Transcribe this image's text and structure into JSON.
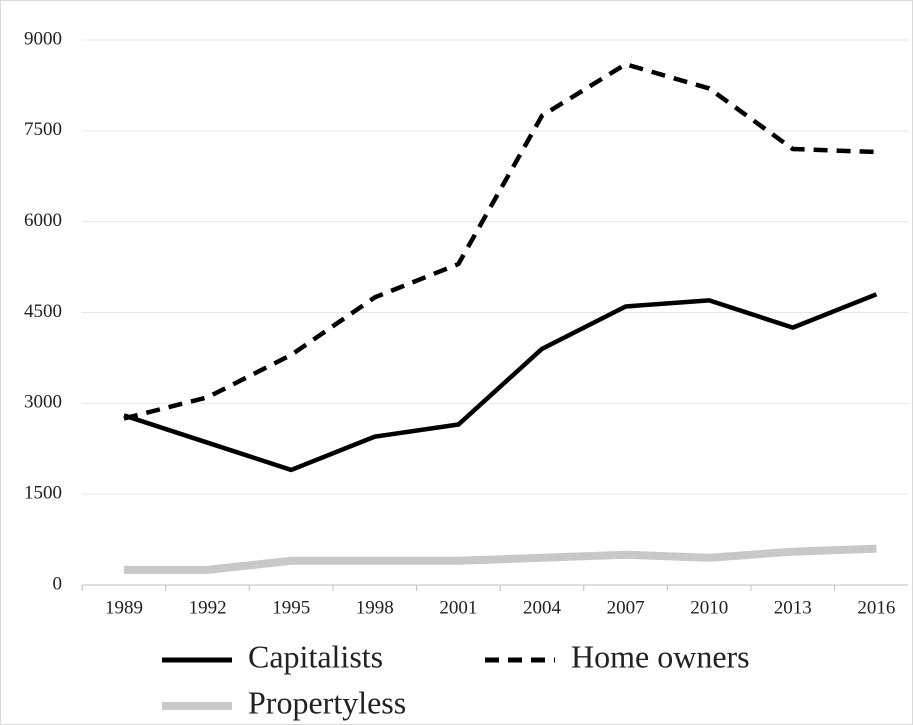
{
  "chart_data": {
    "type": "line",
    "categories": [
      "1989",
      "1992",
      "1995",
      "1998",
      "2001",
      "2004",
      "2007",
      "2010",
      "2013",
      "2016"
    ],
    "series": [
      {
        "name": "Capitalists",
        "color": "#000000",
        "style": "solid",
        "values": [
          2800,
          2350,
          1900,
          2450,
          2650,
          3900,
          4600,
          4700,
          4250,
          4800
        ]
      },
      {
        "name": "Home owners",
        "color": "#000000",
        "style": "dashed",
        "values": [
          2750,
          3100,
          3800,
          4750,
          5300,
          7750,
          8600,
          8200,
          7200,
          7150
        ]
      },
      {
        "name": "Propertyless",
        "color": "#c8c8c8",
        "style": "solid",
        "values": [
          250,
          250,
          400,
          400,
          400,
          450,
          500,
          450,
          550,
          600
        ]
      }
    ],
    "ylim": [
      0,
      9000
    ],
    "yticks": [
      0,
      1500,
      3000,
      4500,
      6000,
      7500,
      9000
    ],
    "grid": true,
    "legend": "bottom"
  }
}
